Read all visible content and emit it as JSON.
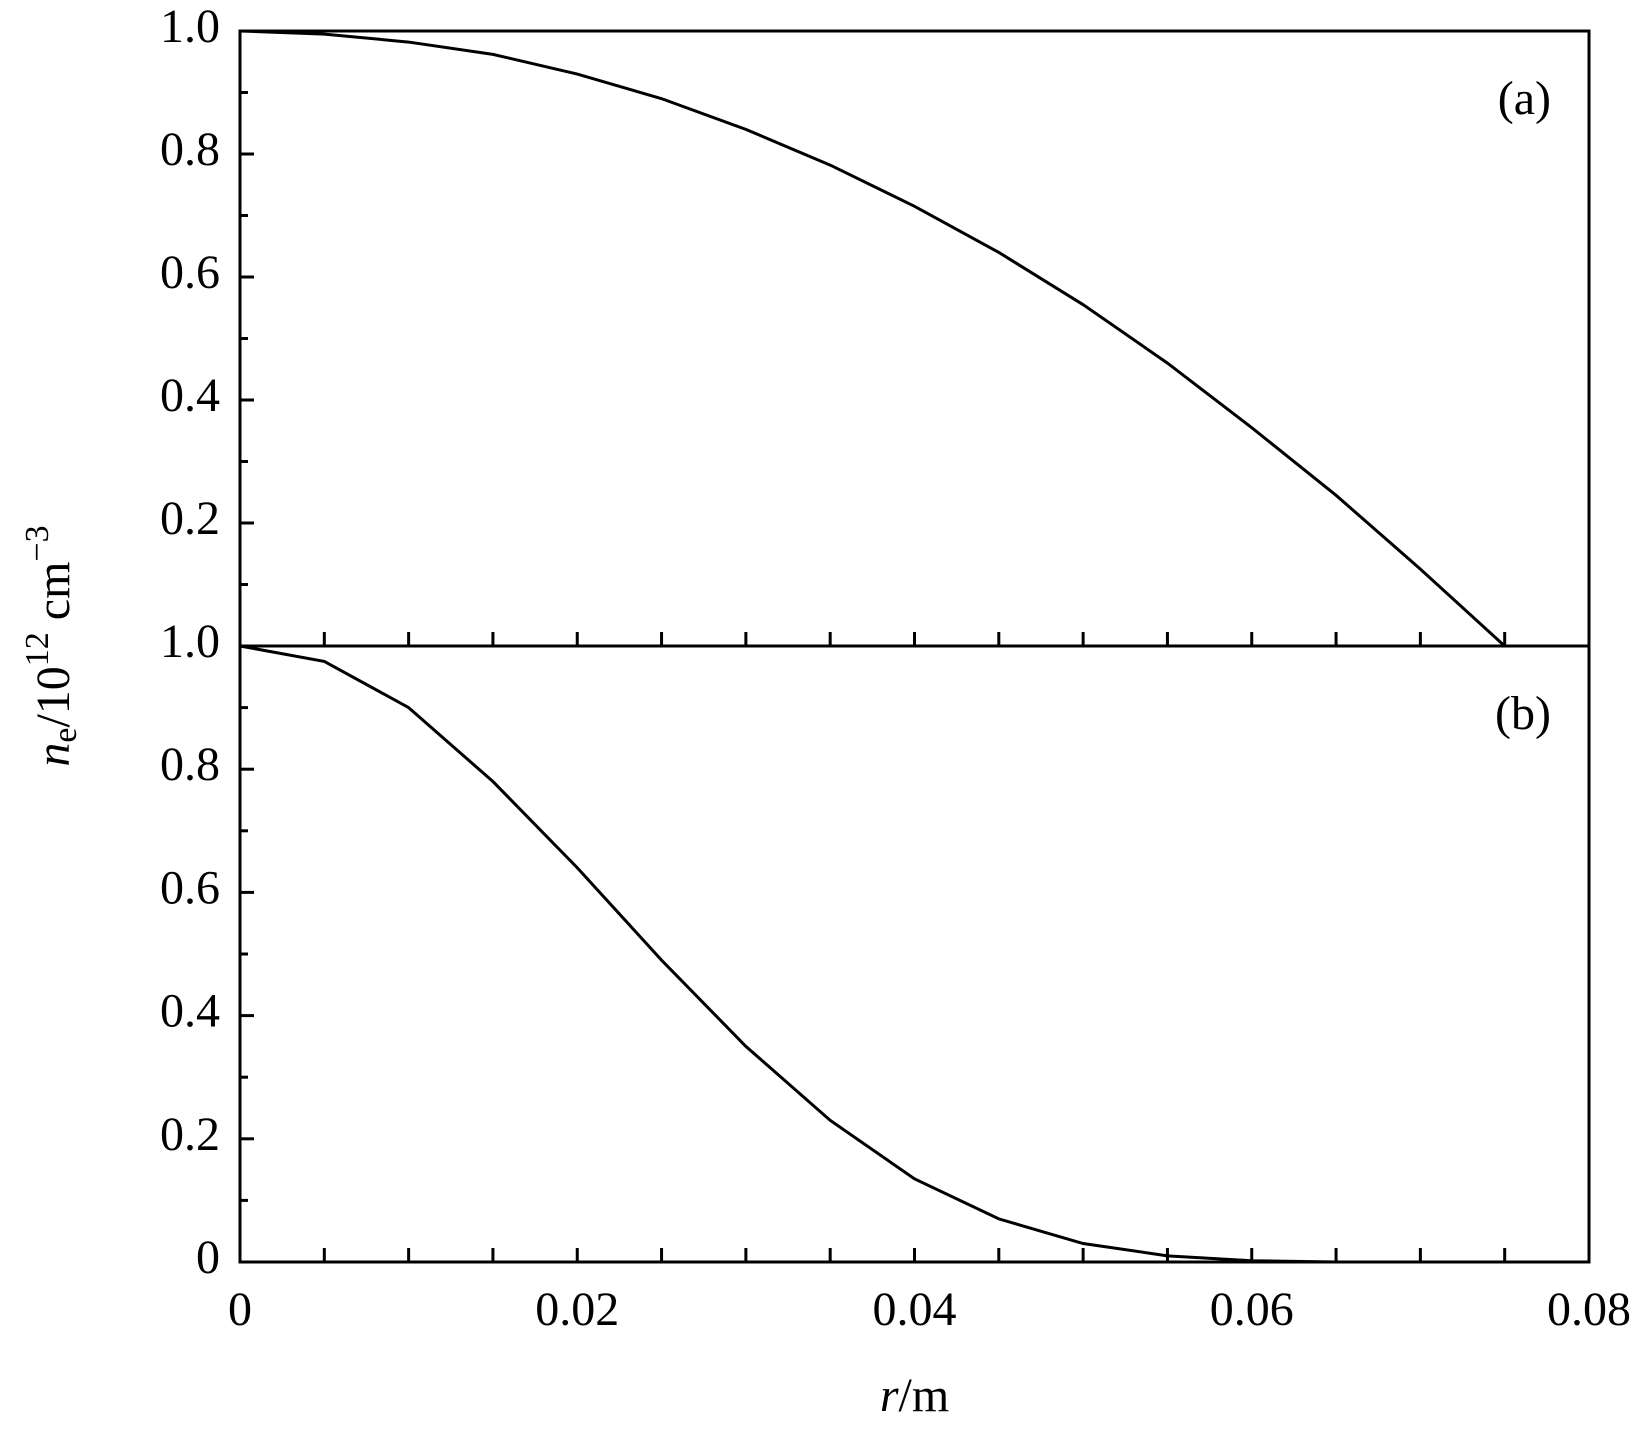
{
  "chart_data": [
    {
      "type": "line",
      "annotation": "(a)",
      "y_label": [
        "n",
        "e",
        "/10",
        "12",
        " cm",
        "−3"
      ],
      "x": [
        0,
        0.005,
        0.01,
        0.015,
        0.02,
        0.025,
        0.03,
        0.035,
        0.04,
        0.045,
        0.05,
        0.055,
        0.06,
        0.065,
        0.07,
        0.075
      ],
      "values": [
        1.0,
        0.995,
        0.982,
        0.962,
        0.93,
        0.89,
        0.84,
        0.782,
        0.715,
        0.64,
        0.555,
        0.46,
        0.355,
        0.245,
        0.125,
        0.0
      ],
      "color": "#000000",
      "xlim": [
        0,
        0.08
      ],
      "ylim": [
        0,
        1
      ],
      "yticks": [
        0.2,
        0.4,
        0.6,
        0.8,
        {
          "value": 1,
          "label": "1.0"
        }
      ]
    },
    {
      "type": "line",
      "annotation": "(b)",
      "x_label": [
        "r",
        "/m"
      ],
      "x": [
        0,
        0.005,
        0.01,
        0.015,
        0.02,
        0.025,
        0.03,
        0.035,
        0.04,
        0.045,
        0.05,
        0.055,
        0.06,
        0.065
      ],
      "values": [
        1.0,
        0.975,
        0.9,
        0.78,
        0.64,
        0.49,
        0.35,
        0.23,
        0.135,
        0.07,
        0.03,
        0.01,
        0.002,
        0.0
      ],
      "color": "#000000",
      "xlim": [
        0,
        0.08
      ],
      "ylim": [
        0,
        1
      ],
      "xticks": [
        0,
        0.02,
        0.04,
        0.06,
        0.08
      ],
      "yticks": [
        0,
        0.2,
        0.4,
        0.6,
        0.8,
        {
          "value": 1,
          "label": "1.0"
        }
      ]
    }
  ]
}
